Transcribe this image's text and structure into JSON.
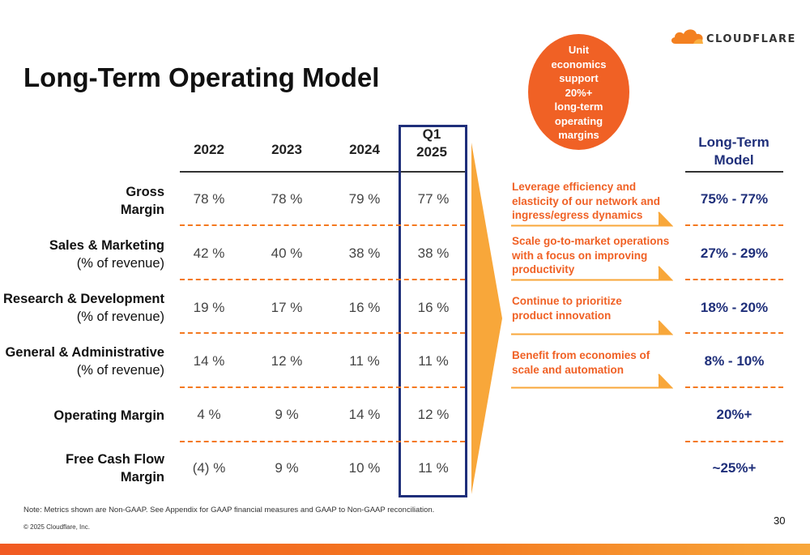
{
  "logo": {
    "text": "CLOUDFLARE",
    "color": "#f38020",
    "icon": "cloud-icon"
  },
  "title": "Long-Term Operating Model",
  "bubble": {
    "text": "Unit\neconomics\nsupport\n20%+\nlong-term\noperating\nmargins",
    "color": "#f06125"
  },
  "table": {
    "columns": [
      "2022",
      "2023",
      "2024"
    ],
    "highlight_column": {
      "line1": "Q1",
      "line2": "2025",
      "border_color": "#1f2f7a"
    },
    "rows": [
      {
        "label_line1": "Gross",
        "label_line2": "Margin",
        "label2_bold": true,
        "values": [
          "78 %",
          "78 %",
          "79 %",
          "77 %"
        ]
      },
      {
        "label_line1": "Sales & Marketing",
        "label_line2": "(% of revenue)",
        "label2_bold": false,
        "values": [
          "42 %",
          "40 %",
          "38 %",
          "38 %"
        ]
      },
      {
        "label_line1": "Research & Development",
        "label_line2": "(% of revenue)",
        "label2_bold": false,
        "values": [
          "19 %",
          "17 %",
          "16 %",
          "16 %"
        ]
      },
      {
        "label_line1": "General & Administrative",
        "label_line2": "(% of revenue)",
        "label2_bold": false,
        "values": [
          "14 %",
          "12 %",
          "11 %",
          "11 %"
        ]
      },
      {
        "label_line1": "Operating Margin",
        "label_line2": "",
        "label2_bold": false,
        "values": [
          "4 %",
          "9 %",
          "14 %",
          "12 %"
        ]
      },
      {
        "label_line1": "Free Cash Flow",
        "label_line2": "Margin",
        "label2_bold": true,
        "values": [
          "(4) %",
          "9 %",
          "10 %",
          "11 %"
        ]
      }
    ],
    "divider_color": "#f47920"
  },
  "levers": [
    {
      "lines": [
        "Leverage efficiency and",
        "elasticity of our network and",
        "ingress/egress dynamics"
      ]
    },
    {
      "lines": [
        "Scale go-to-market operations",
        "with a focus on improving",
        "productivity"
      ]
    },
    {
      "lines": [
        "Continue to prioritize",
        "product innovation"
      ]
    },
    {
      "lines": [
        "Benefit from economies of",
        "scale and automation"
      ]
    }
  ],
  "long_term_model": {
    "header_line1": "Long-Term",
    "header_line2": "Model",
    "values": [
      "75% - 77%",
      "27% - 29%",
      "18% - 20%",
      "8% - 10%",
      "20%+",
      "~25%+"
    ],
    "color": "#1f2f7a"
  },
  "footer": {
    "note": "Note: Metrics shown are Non-GAAP. See Appendix for GAAP financial measures and GAAP to Non-GAAP reconciliation.",
    "copyright": "© 2025 Cloudflare, Inc.",
    "page_number": "30"
  }
}
